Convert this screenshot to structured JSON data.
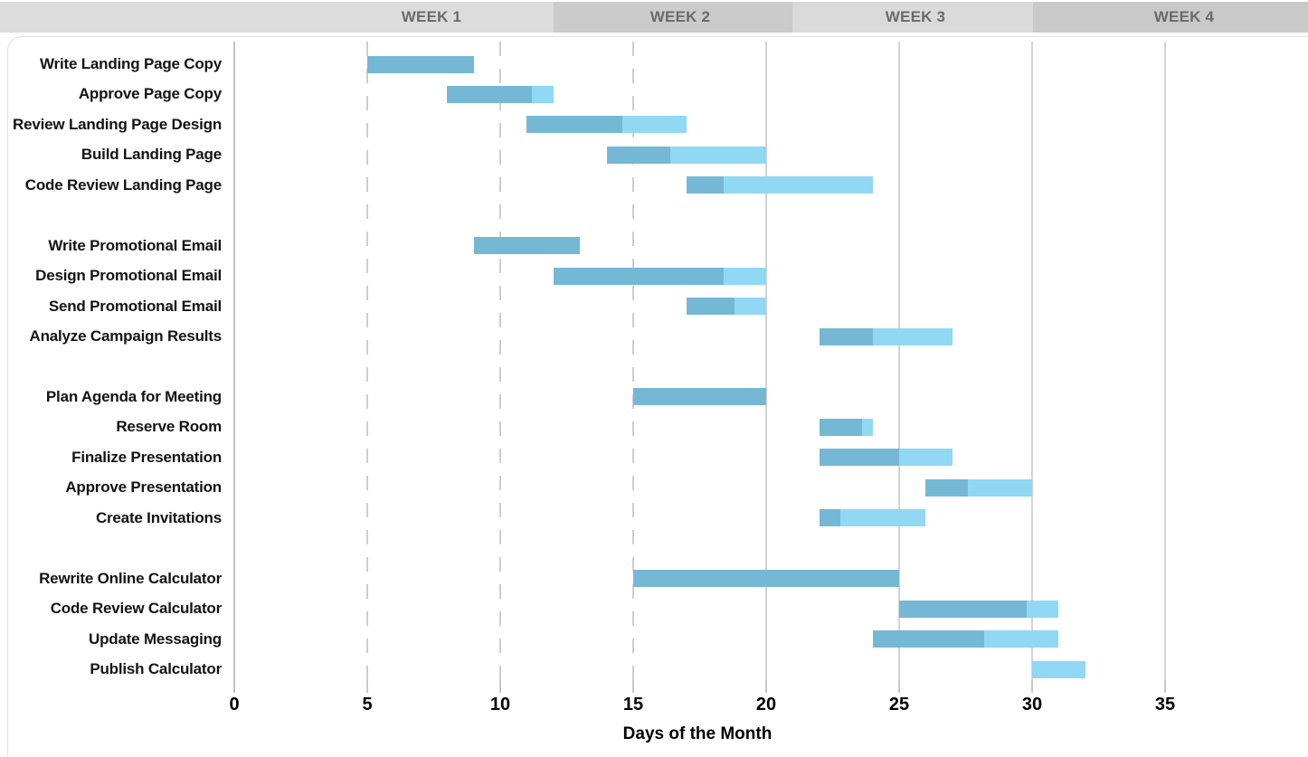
{
  "header": {
    "weeks": [
      {
        "label": "WEEK 1"
      },
      {
        "label": "WEEK 2"
      },
      {
        "label": "WEEK 3"
      },
      {
        "label": "WEEK 4"
      }
    ]
  },
  "chart_data": {
    "type": "gantt",
    "title": "",
    "xlabel": "Days of the Month",
    "x_ticks": [
      0,
      5,
      10,
      15,
      20,
      25,
      30,
      35
    ],
    "xlim": [
      0,
      40.5
    ],
    "grid": {
      "dashed_gridline_days": [
        5,
        10,
        15
      ],
      "solid_gridline_days": [
        20,
        25,
        30,
        35
      ],
      "axis_line_day": 0
    },
    "bar_legend_note": "darker segment = portion complete, lighter segment = remaining",
    "groups": [
      {
        "name": "landing-page",
        "tasks": [
          {
            "label": "Write Landing Page Copy",
            "start_day": 5,
            "end_day": 9,
            "percent_complete": 100
          },
          {
            "label": "Approve Page Copy",
            "start_day": 8,
            "end_day": 12,
            "percent_complete": 80
          },
          {
            "label": "Review Landing Page Design",
            "start_day": 11,
            "end_day": 17,
            "percent_complete": 60
          },
          {
            "label": "Build Landing Page",
            "start_day": 14,
            "end_day": 20,
            "percent_complete": 40
          },
          {
            "label": "Code Review Landing Page",
            "start_day": 17,
            "end_day": 24,
            "percent_complete": 20
          }
        ]
      },
      {
        "name": "promotional-email",
        "tasks": [
          {
            "label": "Write Promotional Email",
            "start_day": 9,
            "end_day": 13,
            "percent_complete": 100
          },
          {
            "label": "Design Promotional Email",
            "start_day": 12,
            "end_day": 20,
            "percent_complete": 80
          },
          {
            "label": "Send Promotional Email",
            "start_day": 17,
            "end_day": 20,
            "percent_complete": 60
          },
          {
            "label": "Analyze Campaign Results",
            "start_day": 22,
            "end_day": 27,
            "percent_complete": 40
          }
        ]
      },
      {
        "name": "meeting",
        "tasks": [
          {
            "label": "Plan Agenda for Meeting",
            "start_day": 15,
            "end_day": 20,
            "percent_complete": 100
          },
          {
            "label": "Reserve Room",
            "start_day": 22,
            "end_day": 24,
            "percent_complete": 80
          },
          {
            "label": "Finalize Presentation",
            "start_day": 22,
            "end_day": 27,
            "percent_complete": 60
          },
          {
            "label": "Approve Presentation",
            "start_day": 26,
            "end_day": 30,
            "percent_complete": 40
          },
          {
            "label": "Create Invitations",
            "start_day": 22,
            "end_day": 26,
            "percent_complete": 20
          }
        ]
      },
      {
        "name": "calculator",
        "tasks": [
          {
            "label": "Rewrite Online Calculator",
            "start_day": 15,
            "end_day": 25,
            "percent_complete": 100
          },
          {
            "label": "Code Review Calculator",
            "start_day": 25,
            "end_day": 31,
            "percent_complete": 80
          },
          {
            "label": "Update Messaging",
            "start_day": 24,
            "end_day": 31,
            "percent_complete": 60
          },
          {
            "label": "Publish Calculator",
            "start_day": 30,
            "end_day": 32,
            "percent_complete": 0
          }
        ]
      }
    ]
  },
  "colors": {
    "bar_complete": "#74b8d5",
    "bar_remaining": "#90d8f4",
    "week_band_light": "#dcdcdc",
    "week_band_dark": "#cbcbcb",
    "week_band_light2": "#dadada",
    "week_band_dark2": "#c9c9c9",
    "week_text": "#6a6a6a",
    "gridline": "#d4d4d4",
    "tick_text": "#000000"
  }
}
